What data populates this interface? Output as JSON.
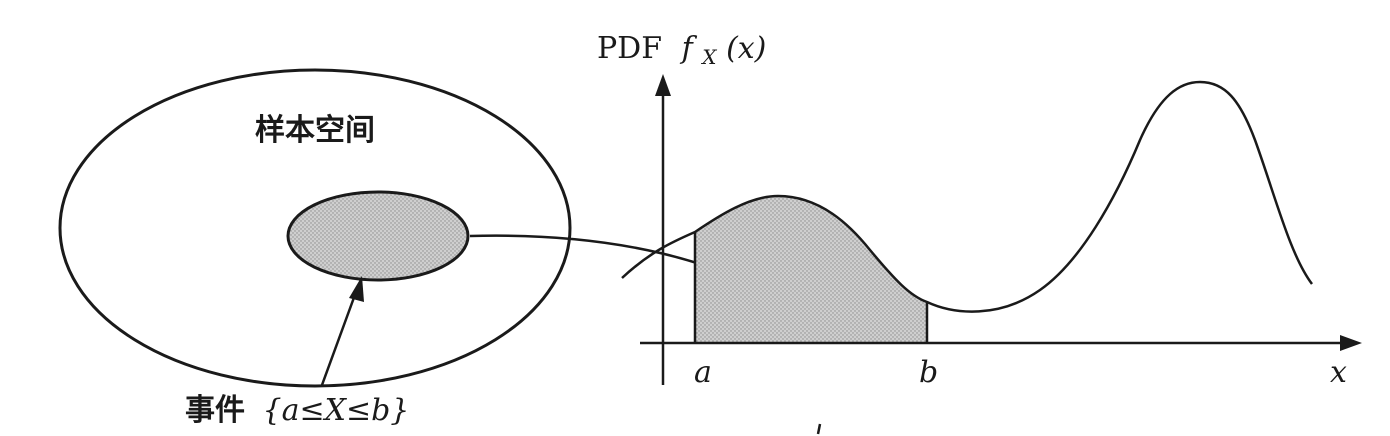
{
  "sample_space": {
    "label": "样本空间"
  },
  "event": {
    "label_prefix": "事件",
    "label_expr": "{a≤X≤b}"
  },
  "pdf_axis": {
    "y_label_text": "PDF",
    "y_label_func": "f",
    "y_label_sub": "X",
    "y_label_arg": "(x)",
    "x_label": "x"
  },
  "interval": {
    "start_label": "a",
    "end_label": "b"
  },
  "colors": {
    "stroke": "#1a1a1a",
    "event_fill": "#b8b8b8",
    "area_fill": "#c4c4c4",
    "background": "#ffffff"
  }
}
